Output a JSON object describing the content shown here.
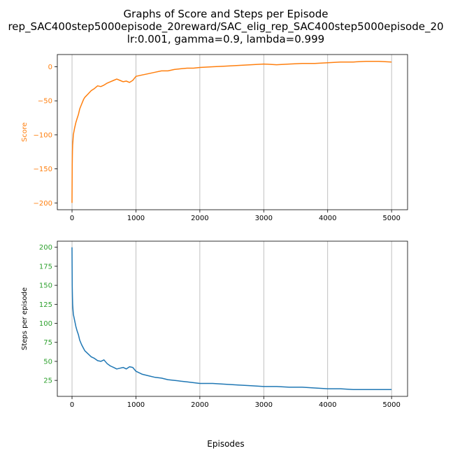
{
  "figure": {
    "title_lines": [
      "Graphs of Score and Steps per Episode",
      "rep_SAC400step5000episode_20reward/SAC_elig_rep_SAC400step5000episode_20",
      "lr:0.001, gamma=0.9, lambda=0.999"
    ],
    "xlabel": "Episodes"
  },
  "chart_data": [
    {
      "type": "line",
      "ylabel": "Score",
      "color": "#ff7f0e",
      "tick_color": "#ff7f0e",
      "xlim": [
        -230,
        5250
      ],
      "ylim": [
        -210,
        18
      ],
      "xticks": [
        0,
        1000,
        2000,
        3000,
        4000,
        5000
      ],
      "yticks": [
        0,
        -50,
        -100,
        -150,
        -200
      ],
      "grid_x": true,
      "x": [
        0,
        3,
        6,
        10,
        15,
        20,
        30,
        40,
        50,
        60,
        80,
        100,
        120,
        150,
        180,
        200,
        250,
        300,
        350,
        400,
        450,
        500,
        550,
        600,
        650,
        700,
        750,
        800,
        850,
        900,
        950,
        1000,
        1100,
        1200,
        1300,
        1400,
        1500,
        1600,
        1700,
        1800,
        1900,
        2000,
        2200,
        2400,
        2600,
        2800,
        3000,
        3200,
        3400,
        3600,
        3800,
        4000,
        4200,
        4400,
        4600,
        4800,
        5000
      ],
      "y": [
        -200,
        -145,
        -125,
        -115,
        -108,
        -100,
        -95,
        -90,
        -86,
        -82,
        -76,
        -70,
        -62,
        -55,
        -48,
        -45,
        -40,
        -35,
        -32,
        -28,
        -29,
        -27,
        -24,
        -22,
        -20,
        -18,
        -20,
        -22,
        -21,
        -23,
        -20,
        -14,
        -12,
        -10,
        -8,
        -6,
        -6,
        -4,
        -3,
        -2,
        -2,
        -1,
        0,
        1,
        2,
        3,
        4,
        3,
        4,
        5,
        5,
        6,
        7,
        7,
        8,
        8,
        7
      ]
    },
    {
      "type": "line",
      "ylabel": "Steps per episode",
      "color": "#1f77b4",
      "tick_color": "#2ca02c",
      "xlim": [
        -230,
        5250
      ],
      "ylim": [
        4,
        208
      ],
      "xticks": [
        0,
        1000,
        2000,
        3000,
        4000,
        5000
      ],
      "yticks": [
        25,
        50,
        75,
        100,
        125,
        150,
        175,
        200
      ],
      "grid_x": true,
      "x": [
        0,
        3,
        6,
        10,
        15,
        20,
        30,
        40,
        50,
        60,
        80,
        100,
        120,
        150,
        180,
        200,
        250,
        300,
        350,
        400,
        450,
        500,
        550,
        600,
        650,
        700,
        750,
        800,
        850,
        900,
        950,
        1000,
        1100,
        1200,
        1300,
        1400,
        1500,
        1600,
        1700,
        1800,
        1900,
        2000,
        2200,
        2400,
        2600,
        2800,
        3000,
        3200,
        3400,
        3600,
        3800,
        4000,
        4200,
        4400,
        4600,
        4800,
        5000
      ],
      "y": [
        200,
        150,
        135,
        125,
        118,
        112,
        108,
        104,
        100,
        96,
        90,
        85,
        78,
        72,
        67,
        64,
        60,
        56,
        54,
        51,
        50,
        52,
        47,
        44,
        42,
        40,
        41,
        42,
        40,
        43,
        42,
        37,
        33,
        31,
        29,
        28,
        26,
        25,
        24,
        23,
        22,
        21,
        21,
        20,
        19,
        18,
        17,
        17,
        16,
        16,
        15,
        14,
        14,
        13,
        13,
        13,
        13
      ]
    }
  ]
}
